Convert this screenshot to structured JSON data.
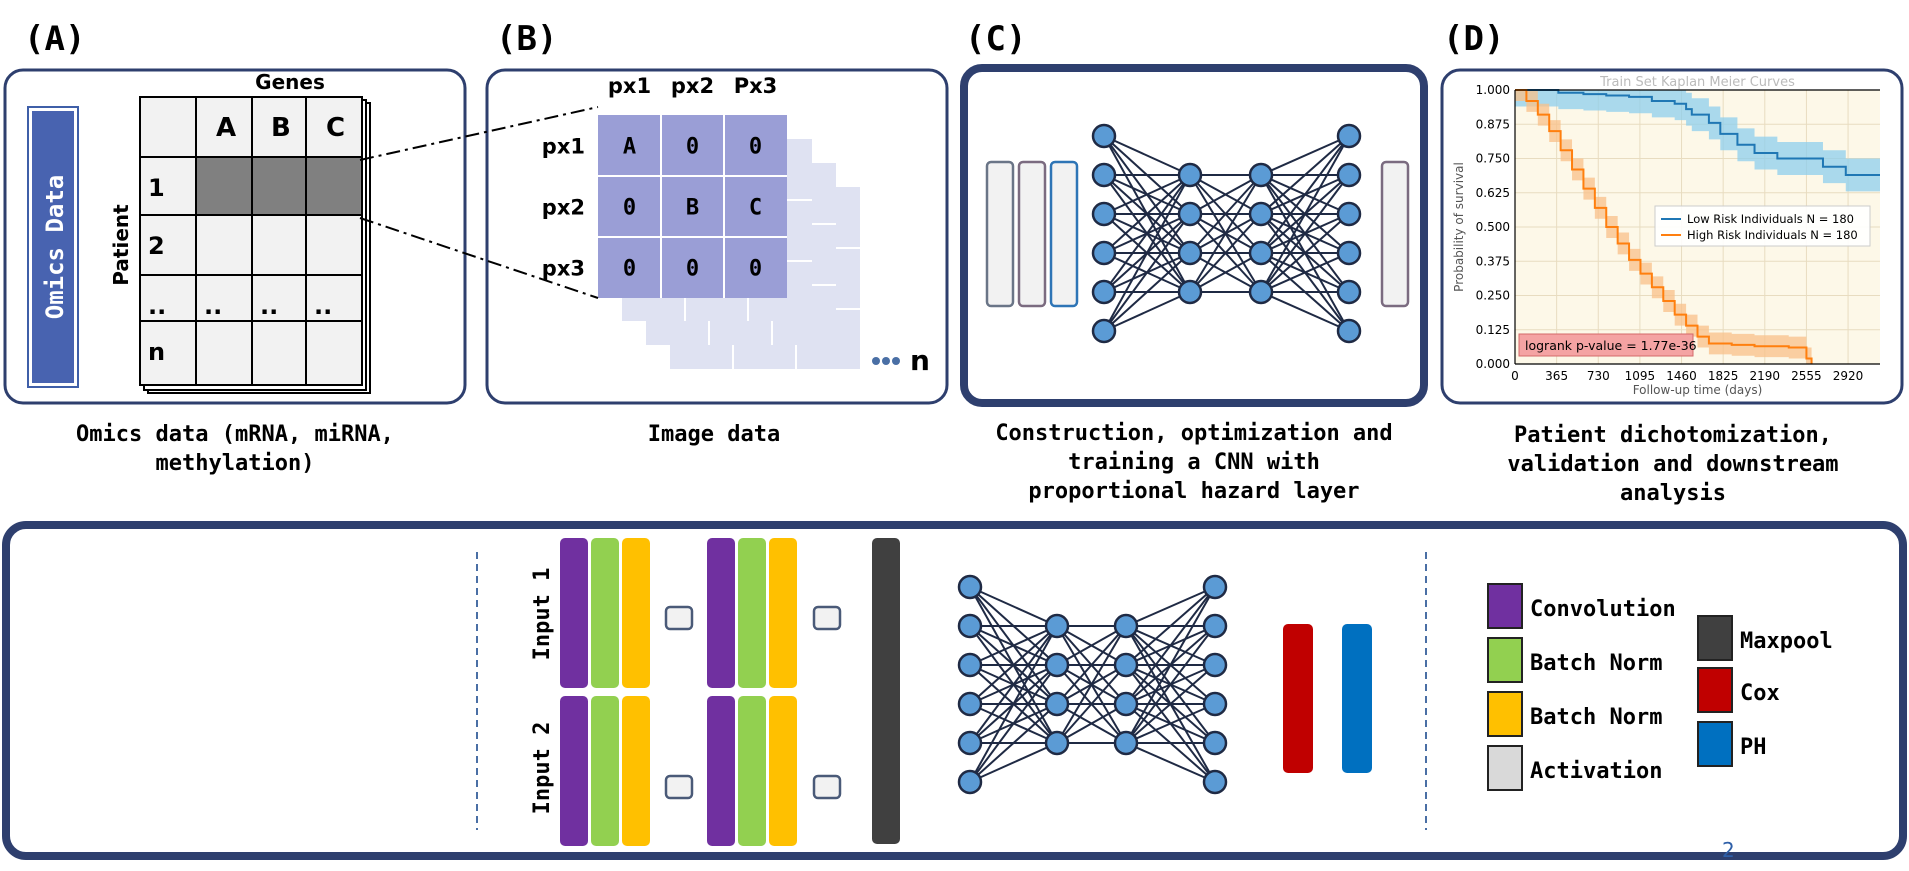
{
  "panels": {
    "a": {
      "label": "(A)",
      "side_label": "Omics Data",
      "genes_title": "Genes",
      "patient_title": "Patient",
      "col_headers": [
        "A",
        "B",
        "C"
      ],
      "row_headers": [
        "1",
        "2",
        "..",
        "n"
      ],
      "dots_cell": "..",
      "caption_1": "Omics data (mRNA, miRNA,",
      "caption_2": "methylation)"
    },
    "b": {
      "label": "(B)",
      "col_headers": [
        "px1",
        "px2",
        "Px3"
      ],
      "row_headers": [
        "px1",
        "px2",
        "px3"
      ],
      "cells": [
        [
          "A",
          "0",
          "0"
        ],
        [
          "0",
          "B",
          "C"
        ],
        [
          "0",
          "0",
          "0"
        ]
      ],
      "n_label": "n",
      "caption": "Image data"
    },
    "c": {
      "label": "(C)",
      "caption_1": "Construction, optimization and",
      "caption_2": "training a CNN with",
      "caption_3": "proportional hazard layer"
    },
    "d": {
      "label": "(D)",
      "caption_1": "Patient dichotomization,",
      "caption_2": "validation and downstream",
      "caption_3": "analysis"
    }
  },
  "chart_data": {
    "type": "line",
    "title": "Train Set Kaplan Meier Curves",
    "xlabel": "Follow-up time (days)",
    "ylabel": "Probability of survival",
    "xlim": [
      0,
      3200
    ],
    "ylim": [
      0,
      1.0
    ],
    "x_ticks": [
      "0",
      "365",
      "730",
      "1095",
      "1460",
      "1825",
      "2190",
      "2555",
      "2920"
    ],
    "y_ticks": [
      "0.000",
      "0.125",
      "0.250",
      "0.375",
      "0.500",
      "0.625",
      "0.750",
      "0.875",
      "1.000"
    ],
    "grid": true,
    "legend_position": "right",
    "annotation": "logrank p-value = 1.77e-36",
    "series": [
      {
        "name": "Low Risk Individuals N = 180",
        "color": "#1f77b4",
        "x": [
          0,
          300,
          380,
          600,
          800,
          1000,
          1200,
          1400,
          1500,
          1550,
          1700,
          1800,
          1950,
          2100,
          2300,
          2500,
          2700,
          2900,
          3000,
          3200
        ],
        "y": [
          1.0,
          1.0,
          0.99,
          0.985,
          0.98,
          0.975,
          0.96,
          0.95,
          0.93,
          0.91,
          0.88,
          0.84,
          0.8,
          0.77,
          0.75,
          0.75,
          0.72,
          0.69,
          0.69,
          0.69
        ]
      },
      {
        "name": "High Risk Individuals N = 180",
        "color": "#ff7f0e",
        "x": [
          0,
          100,
          200,
          300,
          400,
          500,
          600,
          700,
          800,
          900,
          1000,
          1100,
          1200,
          1300,
          1400,
          1500,
          1600,
          1700,
          1900,
          2100,
          2300,
          2400,
          2555,
          2600
        ],
        "y": [
          1.0,
          0.96,
          0.91,
          0.85,
          0.78,
          0.71,
          0.64,
          0.57,
          0.5,
          0.44,
          0.38,
          0.33,
          0.28,
          0.23,
          0.18,
          0.14,
          0.1,
          0.075,
          0.07,
          0.065,
          0.065,
          0.06,
          0.02,
          0.0
        ]
      }
    ]
  },
  "bottom": {
    "input1": "Input 1",
    "input2": "Input 2",
    "legend": {
      "conv": "Convolution",
      "bn1": "Batch Norm",
      "bn2": "Batch Norm",
      "act": "Activation",
      "maxpool": "Maxpool",
      "cox": "Cox",
      "ph": "PH"
    },
    "colors": {
      "conv": "#7030a0",
      "bn_green": "#92d050",
      "bn_yellow": "#ffc000",
      "act": "#d9d9d9",
      "maxpool": "#404040",
      "cox": "#c00000",
      "ph": "#0070c0"
    },
    "page_number": "2"
  }
}
